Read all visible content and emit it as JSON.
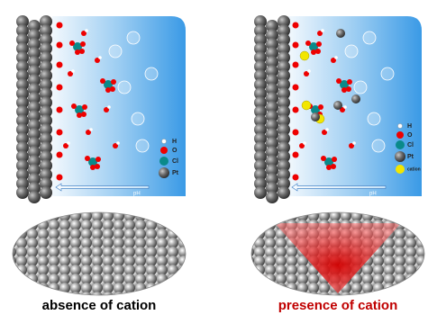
{
  "panels": [
    {
      "legend": [
        "H",
        "O",
        "Cl",
        "Pt"
      ],
      "arrow_label": "pH",
      "caption": "absence of cation"
    },
    {
      "legend": [
        "H",
        "O",
        "Cl",
        "Pt",
        "cation"
      ],
      "arrow_label": "pH",
      "caption": "presence of cation"
    }
  ]
}
